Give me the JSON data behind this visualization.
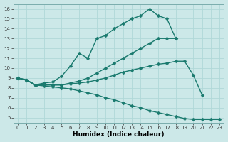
{
  "background_color": "#cce8e8",
  "grid_color": "#b0d8d8",
  "line_color": "#1a7a6e",
  "xlabel": "Humidex (Indice chaleur)",
  "xlim": [
    -0.5,
    23.5
  ],
  "ylim": [
    4.5,
    16.5
  ],
  "xticks": [
    0,
    1,
    2,
    3,
    4,
    5,
    6,
    7,
    8,
    9,
    10,
    11,
    12,
    13,
    14,
    15,
    16,
    17,
    18,
    19,
    20,
    21,
    22,
    23
  ],
  "yticks": [
    5,
    6,
    7,
    8,
    9,
    10,
    11,
    12,
    13,
    14,
    15,
    16
  ],
  "series": [
    {
      "x": [
        0,
        1,
        2,
        3,
        4,
        5,
        6,
        7,
        8,
        9,
        10,
        11,
        12,
        13,
        14,
        15,
        16,
        17,
        18
      ],
      "y": [
        9,
        8.8,
        8.3,
        8.5,
        8.6,
        9.2,
        10.2,
        11.5,
        11.0,
        13.0,
        13.3,
        14.0,
        14.5,
        15.0,
        15.3,
        16.0,
        15.3,
        15.0,
        13.0
      ]
    },
    {
      "x": [
        0,
        1,
        2,
        3,
        4,
        5,
        6,
        7,
        8,
        9,
        10,
        11,
        12,
        13,
        14,
        15,
        16,
        17,
        18
      ],
      "y": [
        9,
        8.8,
        8.3,
        8.3,
        8.3,
        8.3,
        8.5,
        8.7,
        9.0,
        9.5,
        10.0,
        10.5,
        11.0,
        11.5,
        12.0,
        12.5,
        13.0,
        13.0,
        13.0
      ]
    },
    {
      "x": [
        0,
        1,
        2,
        3,
        4,
        5,
        6,
        7,
        8,
        9,
        10,
        11,
        12,
        13,
        14,
        15,
        16,
        17,
        18,
        19,
        20,
        21,
        22
      ],
      "y": [
        9,
        8.8,
        8.3,
        8.3,
        8.3,
        8.3,
        8.4,
        8.5,
        8.6,
        8.8,
        9.0,
        9.3,
        9.6,
        9.8,
        10.0,
        10.2,
        10.4,
        10.5,
        10.7,
        10.7,
        9.3,
        7.3,
        null
      ]
    },
    {
      "x": [
        0,
        1,
        2,
        3,
        4,
        5,
        6,
        7,
        8,
        9,
        10,
        11,
        12,
        13,
        14,
        15,
        16,
        17,
        18,
        19,
        20,
        21,
        22,
        23
      ],
      "y": [
        9,
        8.8,
        8.3,
        8.2,
        8.1,
        8.0,
        7.9,
        7.7,
        7.5,
        7.3,
        7.0,
        6.8,
        6.5,
        6.2,
        6.0,
        5.7,
        5.5,
        5.3,
        5.1,
        4.9,
        4.8,
        4.8,
        4.8,
        4.8
      ]
    }
  ],
  "marker": "D",
  "markersize": 2.5,
  "linewidth": 1.0,
  "tick_fontsize": 5.0,
  "xlabel_fontsize": 6.5
}
